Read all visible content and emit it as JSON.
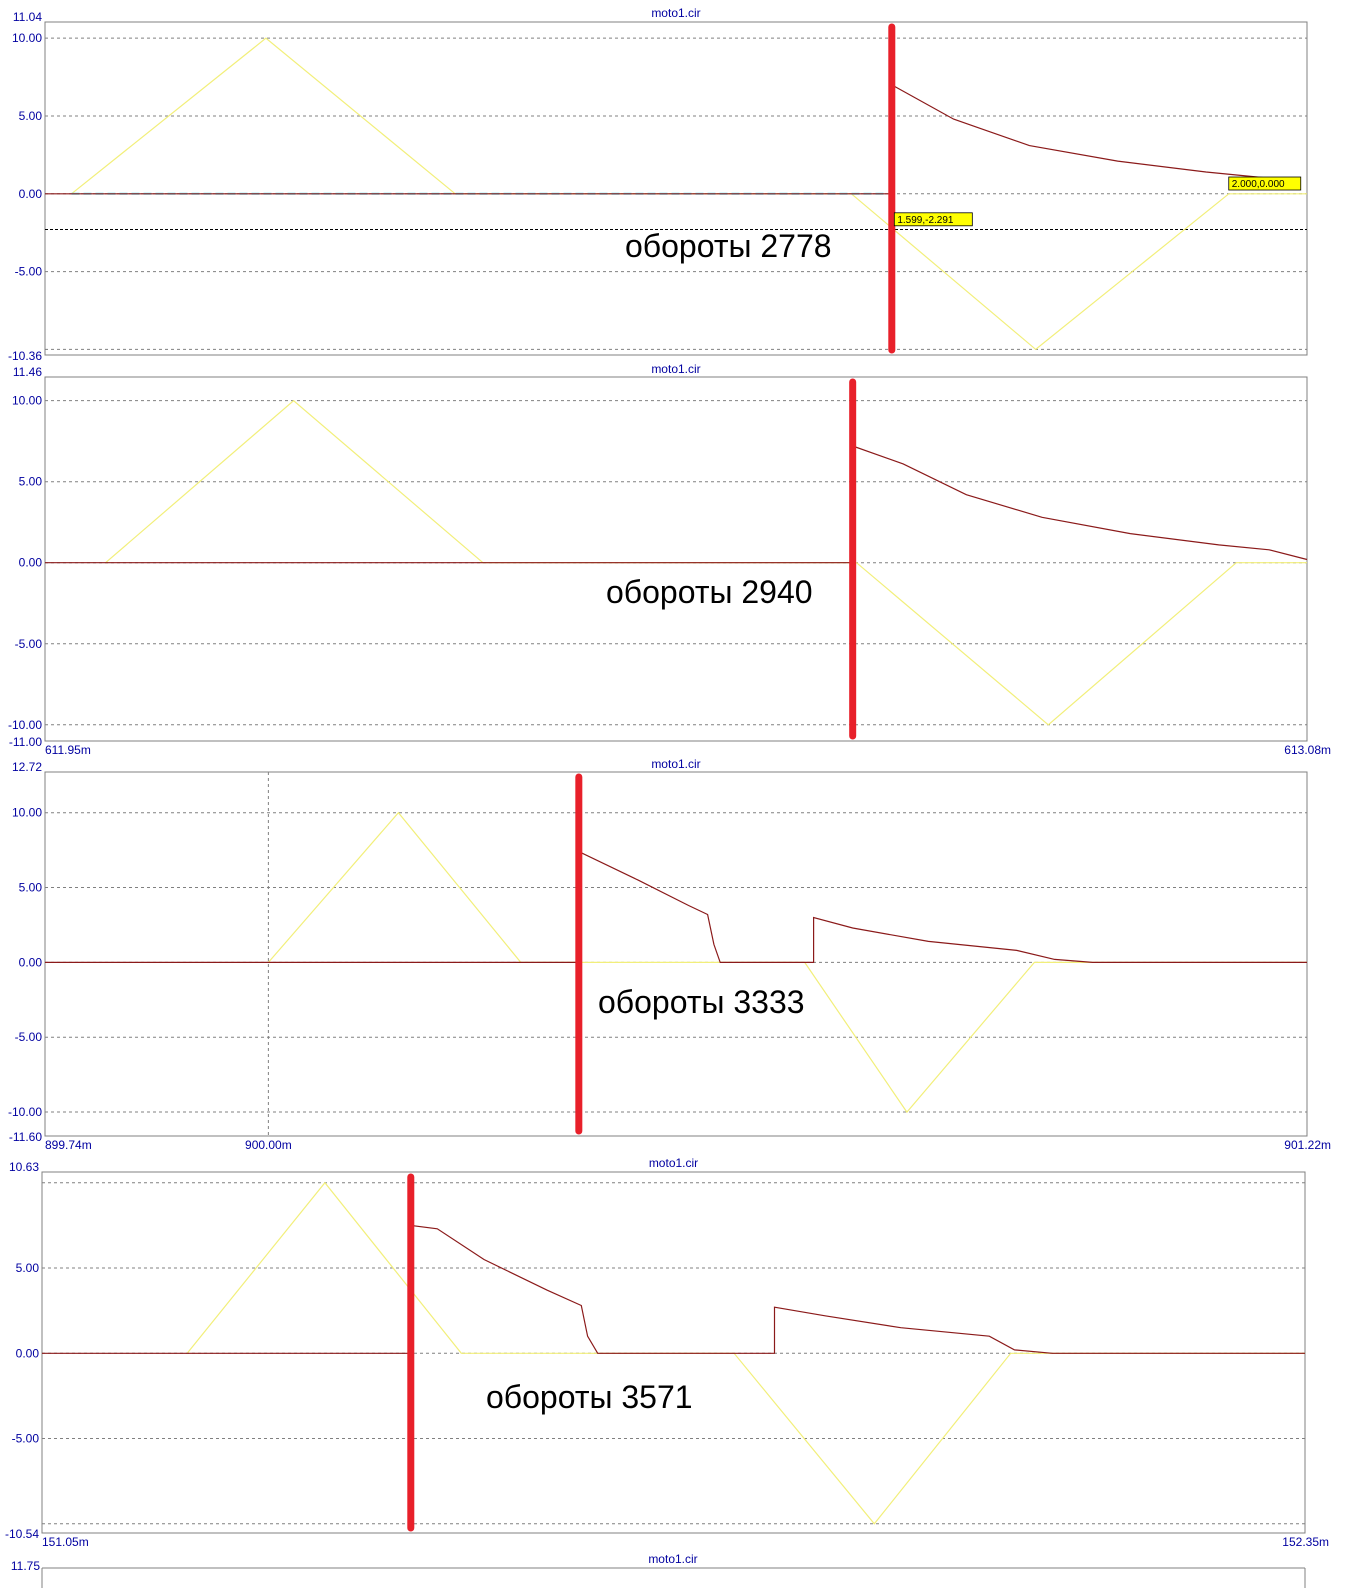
{
  "colors": {
    "frame": "#808080",
    "grid": "#808080",
    "yellow_trace": "#f2ef7a",
    "red_trace": "#8b1a1a",
    "cyan_trace": "#66e0f0",
    "marker": "#e8202a",
    "tick_text": "#0000a0",
    "tag_fill": "#ffff00"
  },
  "chart_data": [
    {
      "type": "line",
      "title": "moto1.cir",
      "annotation": "обороты  2778",
      "ylim": [
        -10.36,
        11.04
      ],
      "xlim": [
        0,
        1
      ],
      "y_tick_labels": [
        {
          "v": 11.04,
          "label": "11.04"
        },
        {
          "v": 10,
          "label": "10.00"
        },
        {
          "v": 5,
          "label": "5.00"
        },
        {
          "v": 0,
          "label": "0.00"
        },
        {
          "v": -5,
          "label": "-5.00"
        },
        {
          "v": -10.36,
          "label": "-10.36"
        }
      ],
      "grid_y": [
        10,
        5,
        0,
        -5,
        -10
      ],
      "x_tick_labels": [],
      "marker_x": 0.671,
      "series": [
        {
          "color": "yellow",
          "points": [
            [
              0.021,
              0
            ],
            [
              0.175,
              10
            ],
            [
              0.325,
              0
            ],
            [
              0.639,
              0
            ],
            [
              0.785,
              -10
            ],
            [
              0.938,
              0
            ],
            [
              1,
              0
            ]
          ]
        },
        {
          "color": "cyan",
          "points": [
            [
              0.021,
              0
            ],
            [
              0.666,
              0
            ]
          ]
        },
        {
          "color": "red",
          "points": [
            [
              0,
              0
            ],
            [
              0.671,
              0
            ],
            [
              0.671,
              7.0
            ],
            [
              0.72,
              4.8
            ],
            [
              0.78,
              3.1
            ],
            [
              0.85,
              2.1
            ],
            [
              0.92,
              1.4
            ],
            [
              0.995,
              0.8
            ]
          ]
        }
      ],
      "cursor_line_y": -2.291,
      "tags": [
        {
          "x": 0.673,
          "y": -1.8,
          "text": "1.599,-2.291"
        },
        {
          "x": 0.938,
          "y": 0.5,
          "text": "2.000,0.000"
        }
      ]
    },
    {
      "type": "line",
      "title": "moto1.cir",
      "annotation": "обороты  2940",
      "ylim": [
        -11.0,
        11.46
      ],
      "xlim": [
        0,
        1
      ],
      "y_tick_labels": [
        {
          "v": 11.46,
          "label": "11.46"
        },
        {
          "v": 10,
          "label": "10.00"
        },
        {
          "v": 5,
          "label": "5.00"
        },
        {
          "v": 0,
          "label": "0.00"
        },
        {
          "v": -5,
          "label": "-5.00"
        },
        {
          "v": -10,
          "label": "-10.00"
        },
        {
          "v": -11.0,
          "label": "-11.00"
        }
      ],
      "grid_y": [
        10,
        5,
        0,
        -5,
        -10
      ],
      "x_tick_labels": [
        {
          "x": 0,
          "label": "611.95m"
        },
        {
          "x": 1,
          "label": "613.08m"
        }
      ],
      "marker_x": 0.64,
      "series": [
        {
          "color": "yellow",
          "points": [
            [
              0.048,
              0
            ],
            [
              0.197,
              10
            ],
            [
              0.347,
              0
            ],
            [
              0.643,
              0
            ],
            [
              0.795,
              -10
            ],
            [
              0.944,
              0
            ],
            [
              1,
              0
            ]
          ]
        },
        {
          "color": "red",
          "points": [
            [
              0,
              0
            ],
            [
              0.64,
              0
            ],
            [
              0.64,
              7.2
            ],
            [
              0.68,
              6.1
            ],
            [
              0.73,
              4.2
            ],
            [
              0.79,
              2.8
            ],
            [
              0.86,
              1.8
            ],
            [
              0.93,
              1.1
            ],
            [
              0.97,
              0.8
            ],
            [
              1,
              0.2
            ]
          ]
        }
      ]
    },
    {
      "type": "line",
      "title": "moto1.cir",
      "annotation": "обороты  3333",
      "ylim": [
        -11.6,
        12.72
      ],
      "xlim": [
        0,
        1
      ],
      "y_tick_labels": [
        {
          "v": 12.72,
          "label": "12.72"
        },
        {
          "v": 10,
          "label": "10.00"
        },
        {
          "v": 5,
          "label": "5.00"
        },
        {
          "v": 0,
          "label": "0.00"
        },
        {
          "v": -5,
          "label": "-5.00"
        },
        {
          "v": -10,
          "label": "-10.00"
        },
        {
          "v": -11.6,
          "label": "-11.60"
        }
      ],
      "grid_y": [
        10,
        5,
        0,
        -5,
        -10
      ],
      "x_gridlines": [
        0.177
      ],
      "x_tick_labels": [
        {
          "x": 0,
          "label": "899.74m"
        },
        {
          "x": 0.177,
          "label": "900.00m"
        },
        {
          "x": 1,
          "label": "901.22m"
        }
      ],
      "marker_x": 0.423,
      "series": [
        {
          "color": "yellow",
          "points": [
            [
              0.177,
              0
            ],
            [
              0.28,
              10
            ],
            [
              0.377,
              0
            ],
            [
              0.602,
              0
            ],
            [
              0.683,
              -10
            ],
            [
              0.784,
              0
            ],
            [
              1,
              0
            ]
          ]
        },
        {
          "color": "red",
          "points": [
            [
              0,
              0
            ],
            [
              0.423,
              0
            ],
            [
              0.423,
              7.4
            ],
            [
              0.47,
              5.5
            ],
            [
              0.51,
              3.8
            ],
            [
              0.525,
              3.2
            ],
            [
              0.53,
              1.2
            ],
            [
              0.535,
              0
            ],
            [
              0.609,
              0
            ],
            [
              0.609,
              3.0
            ],
            [
              0.64,
              2.3
            ],
            [
              0.7,
              1.4
            ],
            [
              0.77,
              0.8
            ],
            [
              0.8,
              0.2
            ],
            [
              0.83,
              0
            ],
            [
              1,
              0
            ]
          ]
        }
      ]
    },
    {
      "type": "line",
      "title": "moto1.cir",
      "annotation": "обороты  3571",
      "ylim": [
        -10.54,
        10.63
      ],
      "xlim": [
        0,
        1
      ],
      "y_tick_labels": [
        {
          "v": 10.63,
          "label": "10.63"
        },
        {
          "v": 5,
          "label": "5.00"
        },
        {
          "v": 0,
          "label": "0.00"
        },
        {
          "v": -5,
          "label": "-5.00"
        },
        {
          "v": -10.54,
          "label": "-10.54"
        }
      ],
      "grid_y": [
        10,
        5,
        0,
        -5,
        -10
      ],
      "x_tick_labels": [
        {
          "x": 0,
          "label": "151.05m"
        },
        {
          "x": 1,
          "label": "152.35m"
        }
      ],
      "marker_x": 0.292,
      "series": [
        {
          "color": "yellow",
          "points": [
            [
              0.115,
              0
            ],
            [
              0.224,
              10
            ],
            [
              0.332,
              0
            ],
            [
              0.548,
              0
            ],
            [
              0.659,
              -10
            ],
            [
              0.767,
              0
            ],
            [
              1,
              0
            ]
          ]
        },
        {
          "color": "red",
          "points": [
            [
              0,
              0
            ],
            [
              0.292,
              0
            ],
            [
              0.292,
              7.5
            ],
            [
              0.313,
              7.3
            ],
            [
              0.35,
              5.5
            ],
            [
              0.4,
              3.7
            ],
            [
              0.427,
              2.8
            ],
            [
              0.432,
              1.0
            ],
            [
              0.44,
              0
            ],
            [
              0.58,
              0
            ],
            [
              0.58,
              2.7
            ],
            [
              0.62,
              2.2
            ],
            [
              0.68,
              1.5
            ],
            [
              0.75,
              1.0
            ],
            [
              0.77,
              0.2
            ],
            [
              0.8,
              0
            ],
            [
              1,
              0
            ]
          ]
        }
      ]
    }
  ],
  "partial_panel": {
    "title": "moto1.cir",
    "top_label": "11.75"
  }
}
